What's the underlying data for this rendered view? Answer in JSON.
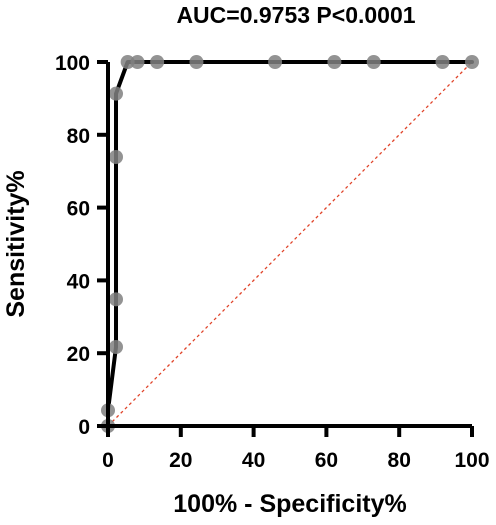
{
  "chart_data": {
    "type": "line",
    "title": "AUC=0.9753 P<0.0001",
    "xlabel": "100% - Specificity%",
    "ylabel": "Sensitivity%",
    "xlim": [
      0,
      100
    ],
    "ylim": [
      0,
      100
    ],
    "x_ticks": [
      "0",
      "20",
      "40",
      "60",
      "80",
      "100"
    ],
    "y_ticks": [
      "0",
      "20",
      "40",
      "60",
      "80",
      "100"
    ],
    "grid": false,
    "legend": "none",
    "series": [
      {
        "color": "#000000",
        "marker_color": "#808080",
        "points": [
          {
            "x": 0,
            "y": 0
          },
          {
            "x": 0,
            "y": 4.3
          },
          {
            "x": 2.2,
            "y": 21.7
          },
          {
            "x": 2.2,
            "y": 34.8
          },
          {
            "x": 2.2,
            "y": 73.9
          },
          {
            "x": 2.2,
            "y": 91.3
          },
          {
            "x": 5.4,
            "y": 100
          },
          {
            "x": 8.1,
            "y": 100
          },
          {
            "x": 13.5,
            "y": 100
          },
          {
            "x": 24.3,
            "y": 100
          },
          {
            "x": 45.9,
            "y": 100
          },
          {
            "x": 62.2,
            "y": 100
          },
          {
            "x": 73,
            "y": 100
          },
          {
            "x": 91.9,
            "y": 100
          },
          {
            "x": 100,
            "y": 100
          }
        ]
      }
    ],
    "reference_line": {
      "from": [
        0,
        0
      ],
      "to": [
        100,
        100
      ],
      "color": "#e0442a"
    }
  }
}
